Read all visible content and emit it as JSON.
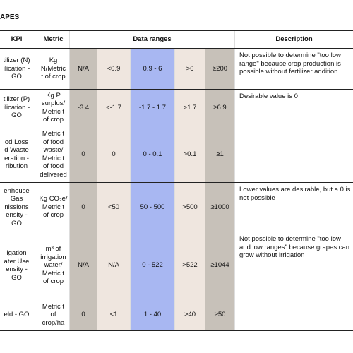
{
  "title": "APES",
  "header": {
    "kpi": "KPI",
    "metric": "Metric",
    "ranges": "Data ranges",
    "description": "Description"
  },
  "rows": [
    {
      "kpi": "tilizer (N)\nilication -\nGO",
      "metric": "Kg\nN/Metric\nt of crop",
      "ranges": [
        "N/A",
        "<0.9",
        "0.9 - 6",
        ">6",
        "≥200"
      ],
      "description": "Not possible to determine \"too low range\" because crop production is possible without fertilizer addition"
    },
    {
      "kpi": "tilizer (P)\nilication -\nGO",
      "metric": "Kg P\nsurplus/\nMetric t\nof crop",
      "ranges": [
        "-3.4",
        "<-1.7",
        "-1.7 - 1.7",
        ">1.7",
        "≥6.9"
      ],
      "description": "Desirable value is 0"
    },
    {
      "kpi": "od Loss\nd Waste\neration -\nribution",
      "metric": "Metric t\nof food\nwaste/\nMetric t\nof food\ndelivered",
      "ranges": [
        "0",
        "0",
        "0 - 0.1",
        ">0.1",
        "≥1"
      ]
    },
    {
      "kpi": "enhouse\nGas\nnissions\nensity -\nGO",
      "metric": "Kg CO₂e/\nMetric t\nof crop",
      "ranges": [
        "0",
        "<50",
        "50 - 500",
        ">500",
        "≥1000"
      ],
      "description": "Lower values are desirable, but a 0 is not possible"
    },
    {
      "kpi": "igation\nater Use\nensity -\nGO",
      "metric": "m³ of\nirrigation\nwater/\nMetric t\nof crop",
      "ranges": [
        "N/A",
        "N/A",
        "0 - 522",
        ">522",
        "≥1044"
      ],
      "description": "Not possible to determine \"too low and low ranges\" because grapes can grow without irrigation"
    },
    {
      "kpi": "eld - GO",
      "metric": "Metric t\nof crop/ha",
      "ranges": [
        "0",
        "<1",
        "1 - 40",
        ">40",
        "≥50"
      ]
    }
  ]
}
